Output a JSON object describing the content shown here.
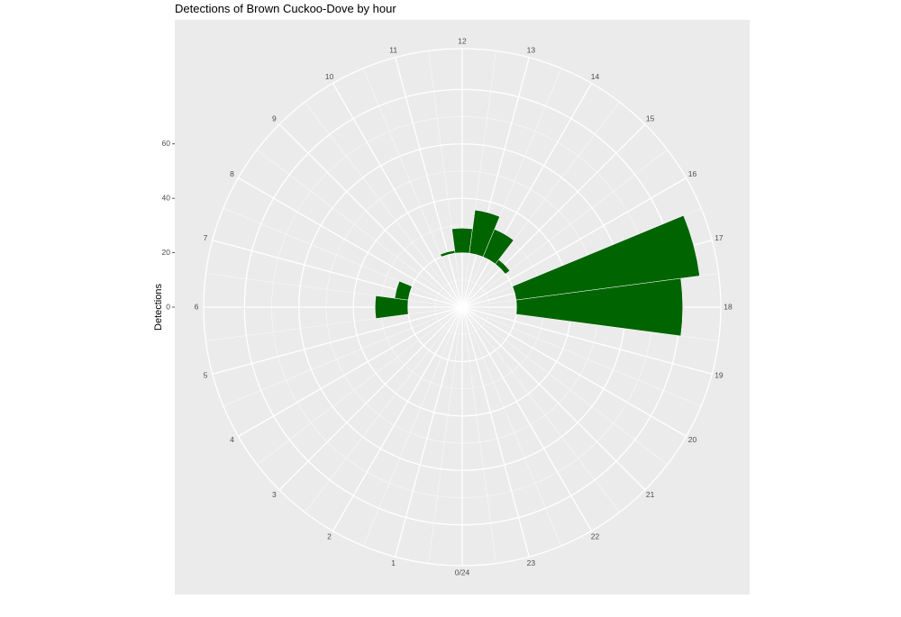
{
  "chart_data": {
    "type": "bar",
    "coord": "polar",
    "title": "Detections of Brown Cuckoo-Dove by hour",
    "xlabel": "",
    "ylabel": "Detections",
    "categories": [
      "0/24",
      "1",
      "2",
      "3",
      "4",
      "5",
      "6",
      "7",
      "8",
      "9",
      "10",
      "11",
      "12",
      "13",
      "14",
      "15",
      "16",
      "17",
      "18",
      "19",
      "20",
      "21",
      "22",
      "23"
    ],
    "values": [
      0,
      0,
      0,
      0,
      0,
      0,
      12,
      5,
      0,
      0,
      0,
      1,
      9,
      16,
      11,
      2,
      0,
      68,
      61,
      0,
      0,
      0,
      0,
      0
    ],
    "y_ticks": [
      0,
      20,
      40,
      60
    ],
    "ylim": [
      -20,
      75
    ],
    "grid": true,
    "bar_color": "#006400",
    "panel_color": "#ebebeb",
    "grid_color": "#ffffff"
  }
}
